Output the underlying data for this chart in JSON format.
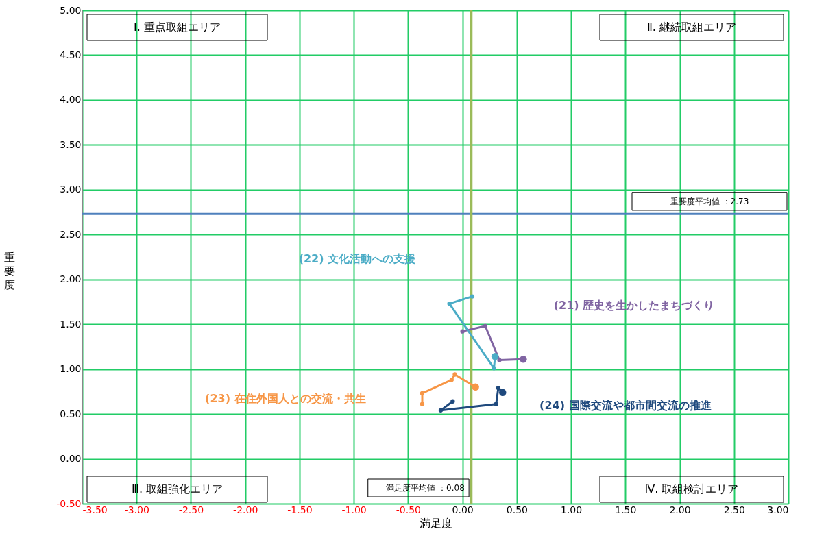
{
  "chart_data": {
    "type": "line",
    "xlabel": "満足度",
    "ylabel": "重要度",
    "xlim": [
      -3.5,
      3.0
    ],
    "ylim": [
      -0.5,
      5.0
    ],
    "xticks": [
      {
        "value": -3.5,
        "label": "-3.50"
      },
      {
        "value": -3.0,
        "label": "-3.00"
      },
      {
        "value": -2.5,
        "label": "-2.50"
      },
      {
        "value": -2.0,
        "label": "-2.00"
      },
      {
        "value": -1.5,
        "label": "-1.50"
      },
      {
        "value": -1.0,
        "label": "-1.00"
      },
      {
        "value": -0.5,
        "label": "-0.50"
      },
      {
        "value": 0,
        "label": "0.00"
      },
      {
        "value": 0.5,
        "label": "0.50"
      },
      {
        "value": 1.0,
        "label": "1.00"
      },
      {
        "value": 1.5,
        "label": "1.50"
      },
      {
        "value": 2.0,
        "label": "2.00"
      },
      {
        "value": 2.5,
        "label": "2.50"
      },
      {
        "value": 3.0,
        "label": "3.00"
      }
    ],
    "yticks": [
      {
        "value": -0.5,
        "label": "-0.50"
      },
      {
        "value": 0,
        "label": "0.00"
      },
      {
        "value": 0.5,
        "label": "0.50"
      },
      {
        "value": 1.0,
        "label": "1.00"
      },
      {
        "value": 1.5,
        "label": "1.50"
      },
      {
        "value": 2.0,
        "label": "2.00"
      },
      {
        "value": 2.5,
        "label": "2.50"
      },
      {
        "value": 3.0,
        "label": "3.00"
      },
      {
        "value": 3.5,
        "label": "3.50"
      },
      {
        "value": 4.0,
        "label": "4.00"
      },
      {
        "value": 4.5,
        "label": "4.50"
      },
      {
        "value": 5.0,
        "label": "5.00"
      }
    ],
    "grid": true,
    "legend": false,
    "marker": "circle",
    "line_style": "solid",
    "series": [
      {
        "name": "(21) 歴史を生かしたまちづくり",
        "color": "#8064a2",
        "x": [
          0.0,
          0.21,
          0.34,
          0.56
        ],
        "values": [
          1.42,
          1.48,
          1.1,
          1.11
        ]
      },
      {
        "name": "(22) 文化活動への支援",
        "color": "#4bacc6",
        "x": [
          0.09,
          -0.12,
          0.29,
          0.3
        ],
        "values": [
          1.81,
          1.73,
          1.01,
          1.14
        ]
      },
      {
        "name": "(23) 在住外国人との交流・共生",
        "color": "#f79646",
        "x": [
          -0.37,
          -0.37,
          -0.1,
          -0.07,
          0.12
        ],
        "values": [
          0.61,
          0.73,
          0.88,
          0.94,
          0.8
        ]
      },
      {
        "name": "(24) 国際交流や都市間交流の推進",
        "color": "#1f497d",
        "x": [
          -0.09,
          -0.2,
          0.31,
          0.33,
          0.37
        ],
        "values": [
          0.64,
          0.54,
          0.61,
          0.79,
          0.74
        ]
      }
    ],
    "ref_lines": [
      {
        "axis": "y",
        "value": 2.73,
        "label": "重要度平均値 ：2.73",
        "color": "#4f81bd"
      },
      {
        "axis": "x",
        "value": 0.08,
        "label": "満足度平均値 ：0.08",
        "color": "#9bbb59"
      }
    ],
    "annotations": [
      "Ⅰ. 重点取組エリア",
      "Ⅱ. 継続取組エリア",
      "Ⅲ. 取組強化エリア",
      "Ⅳ. 取組検討エリア"
    ]
  }
}
